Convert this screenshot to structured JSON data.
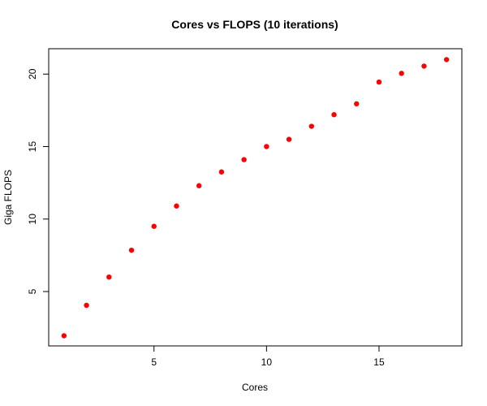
{
  "chart_data": {
    "type": "scatter",
    "title": "Cores vs FLOPS (10 iterations)",
    "xlabel": "Cores",
    "ylabel": "Giga FLOPS",
    "xlim": [
      0.32,
      18.68
    ],
    "ylim": [
      1.25,
      21.75
    ],
    "xticks": [
      5,
      10,
      15
    ],
    "yticks": [
      5,
      10,
      15,
      20
    ],
    "grid": false,
    "point_color": "#ff0000",
    "series": [
      {
        "x": [
          1,
          2,
          3,
          4,
          5,
          6,
          7,
          8,
          9,
          10,
          11,
          12,
          13,
          14,
          15,
          16,
          17,
          18
        ],
        "y": [
          1.95,
          4.05,
          6.0,
          7.85,
          9.5,
          10.9,
          12.3,
          13.25,
          14.1,
          15.0,
          15.5,
          16.4,
          17.2,
          17.95,
          19.45,
          20.05,
          20.55,
          21.0
        ]
      }
    ]
  }
}
